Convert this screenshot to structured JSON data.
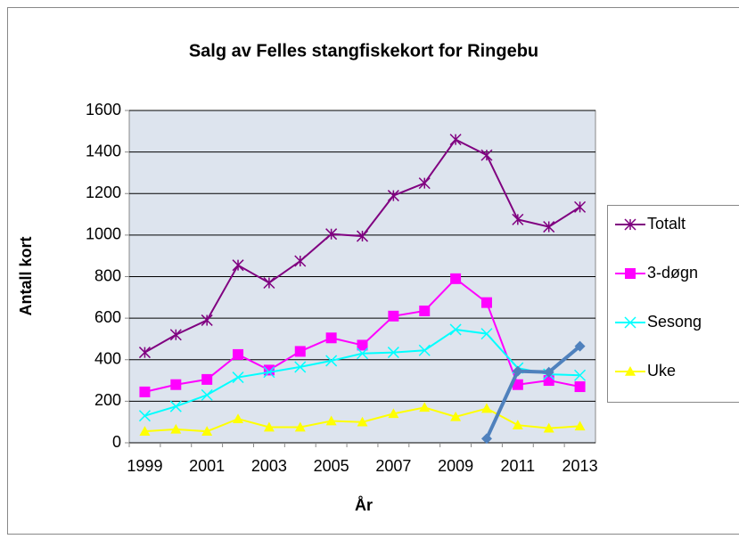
{
  "chart_data": {
    "type": "line",
    "title": "Salg av Felles stangfiskekort for Ringebu",
    "x_label": "År",
    "y_label": "Antall kort",
    "categories": [
      "1999",
      null,
      "2001",
      null,
      "2003",
      null,
      "2005",
      null,
      "2007",
      null,
      "2009",
      null,
      "2011",
      null,
      "2013"
    ],
    "ylim": [
      0,
      1600
    ],
    "yticks": [
      0,
      200,
      400,
      600,
      800,
      1000,
      1200,
      1400,
      1600
    ],
    "grid": true,
    "legend": "right",
    "series": [
      {
        "name": "Totalt",
        "color": "#800080",
        "marker": "star",
        "values": [
          435,
          520,
          590,
          855,
          770,
          875,
          1005,
          995,
          1190,
          1250,
          1460,
          1385,
          1075,
          1040,
          1135
        ]
      },
      {
        "name": "3-døgn",
        "color": "#ff00ff",
        "marker": "square",
        "values": [
          245,
          280,
          305,
          425,
          350,
          440,
          505,
          470,
          610,
          635,
          790,
          675,
          280,
          300,
          270
        ]
      },
      {
        "name": "Sesong",
        "color": "#00ffff",
        "marker": "x",
        "values": [
          130,
          175,
          230,
          315,
          340,
          365,
          395,
          430,
          435,
          445,
          545,
          525,
          360,
          330,
          325
        ]
      },
      {
        "name": "Uke",
        "color": "#ffff00",
        "marker": "triangle",
        "values": [
          55,
          65,
          55,
          115,
          75,
          75,
          105,
          100,
          140,
          170,
          125,
          165,
          85,
          70,
          80
        ]
      },
      {
        "color": "#4f81bd",
        "marker": "diamond",
        "width": 4,
        "values": [
          null,
          null,
          null,
          null,
          null,
          null,
          null,
          null,
          null,
          null,
          null,
          20,
          345,
          340,
          465
        ]
      }
    ]
  }
}
